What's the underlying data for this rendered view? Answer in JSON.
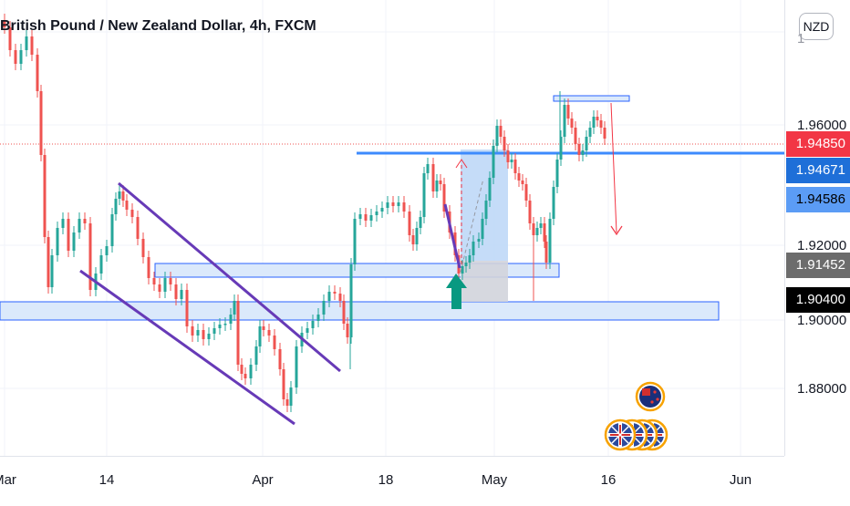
{
  "window": {
    "title": "British Pound / New Zealand Dollar, 4h, FXCM",
    "currency": "NZD"
  },
  "chart_data": {
    "type": "candlestick",
    "title": "British Pound / New Zealand Dollar, 4h, FXCM",
    "symbol": "GBPNZD",
    "timeframe": "4h",
    "source": "FXCM",
    "y_ticks": [
      "1.96000",
      "1.92000",
      "1.90000",
      "1.88000"
    ],
    "x_ticks": [
      "Mar",
      "14",
      "Apr",
      "18",
      "May",
      "16",
      "Jun"
    ],
    "ylim": [
      1.865,
      1.985
    ],
    "price_labels": [
      {
        "value": "1.94850",
        "kind": "last_price",
        "color": "#f23645"
      },
      {
        "value": "1.94671",
        "kind": "horizontal_line",
        "color": "#1e6fd8"
      },
      {
        "value": "1.94586",
        "kind": "horizontal_line",
        "color": "#5b9cf5"
      },
      {
        "value": "1.91452",
        "kind": "zone",
        "color": "#6c6c6c"
      },
      {
        "value": "1.90400",
        "kind": "crosshair",
        "color": "#000000"
      }
    ],
    "colors": {
      "up": "#26a69a",
      "down": "#ef5350",
      "channel": "#673ab7",
      "level": "#2962ff",
      "arrow_long": "#089981",
      "arrow_short": "#f23645"
    },
    "grid": true,
    "icons": [
      "nz-flag-icon",
      "uk-flag-icon"
    ]
  }
}
